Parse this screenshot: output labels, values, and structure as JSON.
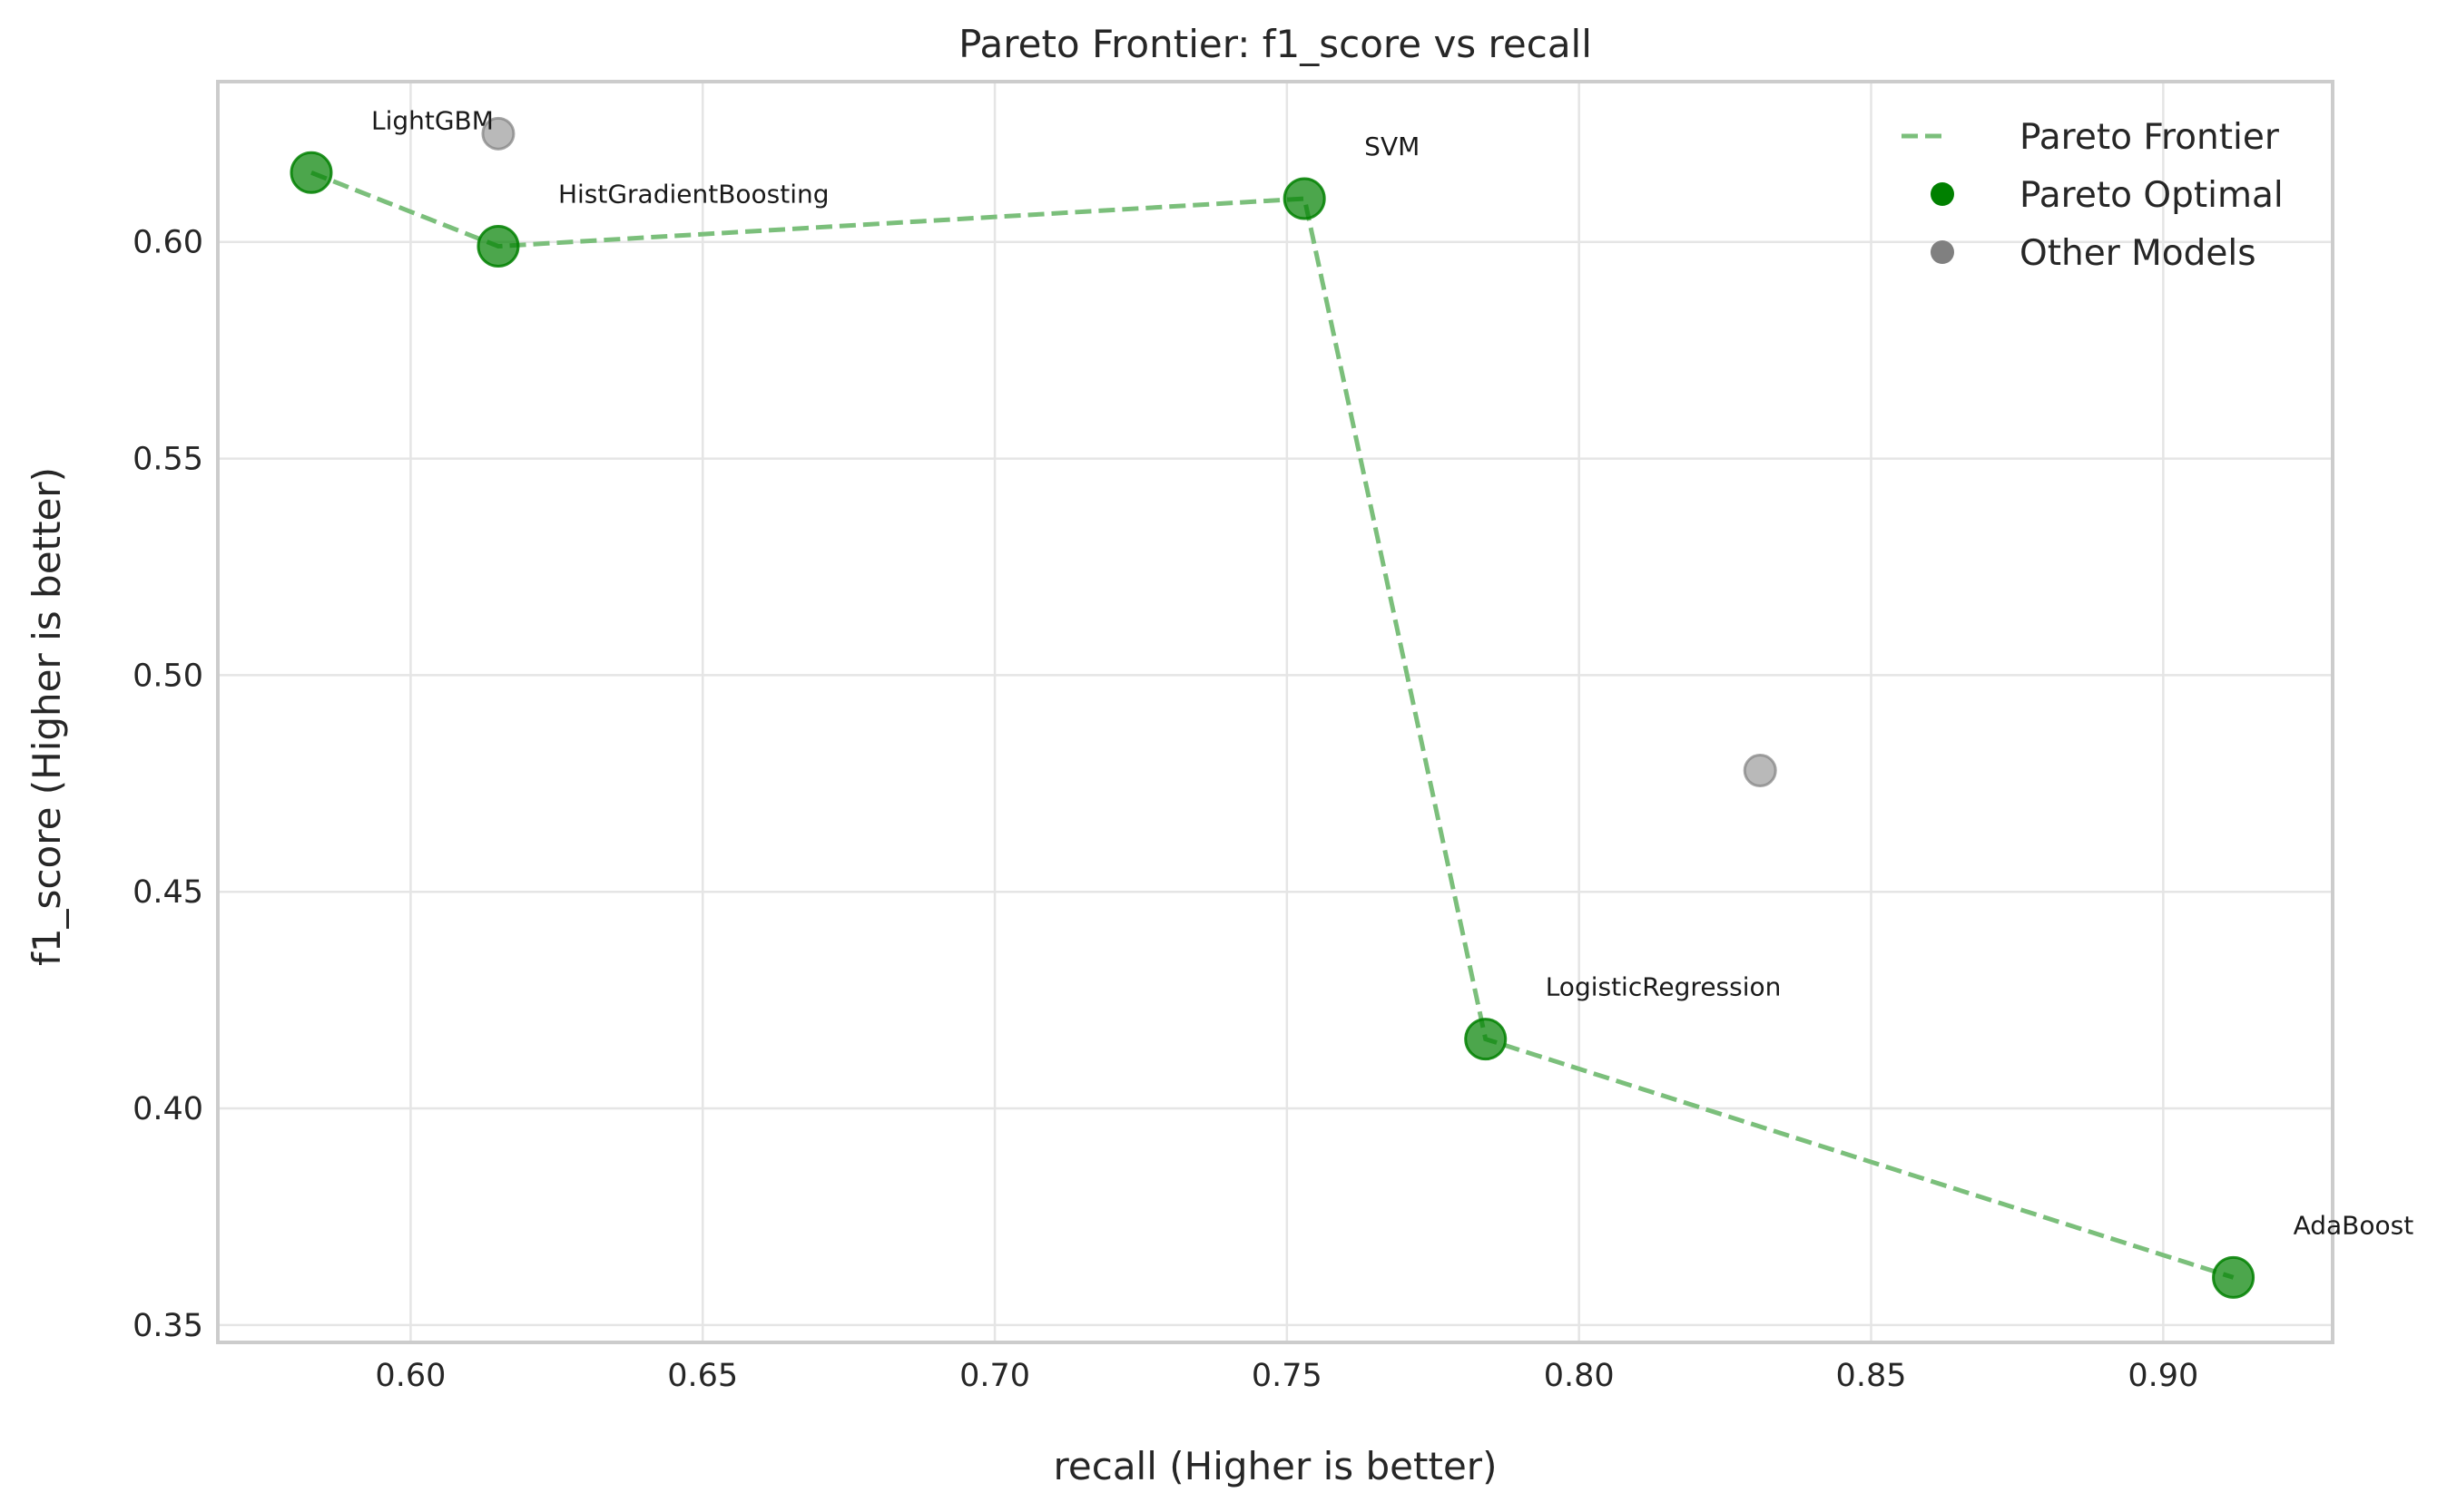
{
  "chart_data": {
    "type": "scatter",
    "title": "Pareto Frontier: f1_score vs recall",
    "xlabel": "recall (Higher is better)",
    "ylabel": "f1_score (Higher is better)",
    "xlim": [
      0.567,
      0.929
    ],
    "ylim": [
      0.346,
      0.637
    ],
    "xticks": [
      0.6,
      0.65,
      0.7,
      0.75,
      0.8,
      0.85,
      0.9
    ],
    "yticks": [
      0.35,
      0.4,
      0.45,
      0.5,
      0.55,
      0.6
    ],
    "tick_decimals": 2,
    "grid": true,
    "legend_position": "top-right",
    "colors": {
      "pareto": "#008000",
      "other": "#808080",
      "frontier": "#7bbf7b"
    },
    "series": [
      {
        "name": "Pareto Frontier",
        "kind": "line",
        "style": "dashed",
        "x": [
          0.583,
          0.615,
          0.753,
          0.784,
          0.912
        ],
        "y": [
          0.616,
          0.599,
          0.61,
          0.416,
          0.361
        ]
      },
      {
        "name": "Pareto Optimal",
        "kind": "scatter",
        "points": [
          {
            "label": "LightGBM",
            "x": 0.583,
            "y": 0.616
          },
          {
            "label": "HistGradientBoosting",
            "x": 0.615,
            "y": 0.599
          },
          {
            "label": "SVM",
            "x": 0.753,
            "y": 0.61
          },
          {
            "label": "LogisticRegression",
            "x": 0.784,
            "y": 0.416
          },
          {
            "label": "AdaBoost",
            "x": 0.912,
            "y": 0.361
          }
        ]
      },
      {
        "name": "Other Models",
        "kind": "scatter",
        "points": [
          {
            "label": "",
            "x": 0.615,
            "y": 0.625
          },
          {
            "label": "",
            "x": 0.831,
            "y": 0.478
          }
        ]
      }
    ]
  }
}
